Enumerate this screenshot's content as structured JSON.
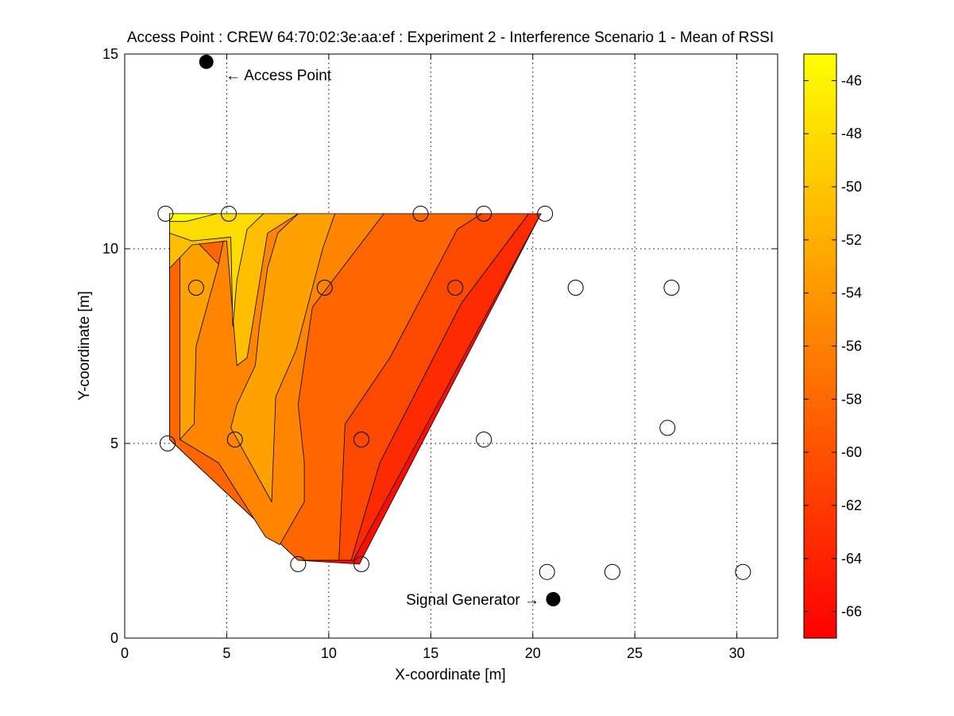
{
  "chart_data": {
    "type": "contour",
    "title": "Access Point : CREW 64:70:02:3e:aa:ef : Experiment 2 - Interference Scenario 1 - Mean of RSSI",
    "xlabel": "X-coordinate [m]",
    "ylabel": "Y-coordinate [m]",
    "xlim": [
      0,
      32
    ],
    "ylim": [
      0,
      15
    ],
    "x_ticks": [
      0,
      5,
      10,
      15,
      20,
      25,
      30
    ],
    "y_ticks": [
      0,
      5,
      10,
      15
    ],
    "grid": true,
    "colorbar": {
      "range": [
        -67,
        -45
      ],
      "ticks": [
        -46,
        -48,
        -50,
        -52,
        -54,
        -56,
        -58,
        -60,
        -62,
        -64,
        -66
      ],
      "colormap": "autumn",
      "low_color": "#ff0000",
      "high_color": "#ffff00"
    },
    "contour_regions": [
      {
        "level": -66.5,
        "color": "#ff0d00",
        "points": [
          [
            2.2,
            5.1
          ],
          [
            2.2,
            10.9
          ],
          [
            20.4,
            10.9
          ],
          [
            11.5,
            1.9
          ],
          [
            8.5,
            2.0
          ]
        ]
      },
      {
        "level": -64.5,
        "color": "#ff2b00",
        "points": [
          [
            2.2,
            5.1
          ],
          [
            2.2,
            10.9
          ],
          [
            20.4,
            10.9
          ],
          [
            11.2,
            2.0
          ],
          [
            8.5,
            2.0
          ]
        ]
      },
      {
        "level": -62.5,
        "color": "#ff4800",
        "points": [
          [
            2.2,
            5.1
          ],
          [
            2.2,
            10.9
          ],
          [
            19.8,
            10.9
          ],
          [
            16.5,
            8.6
          ],
          [
            12.5,
            4.5
          ],
          [
            11.1,
            2.0
          ],
          [
            9.2,
            2.0
          ],
          [
            8.5,
            2.0
          ]
        ]
      },
      {
        "level": -60.5,
        "color": "#ff6600",
        "points": [
          [
            2.2,
            5.1
          ],
          [
            2.2,
            10.9
          ],
          [
            17.5,
            10.9
          ],
          [
            16.3,
            10.5
          ],
          [
            13.0,
            7.2
          ],
          [
            10.8,
            5.5
          ],
          [
            10.5,
            2.0
          ],
          [
            9.2,
            2.0
          ],
          [
            8.5,
            2.0
          ]
        ]
      },
      {
        "level": -58.5,
        "color": "#ff8400",
        "points": [
          [
            2.7,
            5.1
          ],
          [
            2.7,
            10.0
          ],
          [
            3.5,
            10.2
          ],
          [
            3.2,
            9.0
          ],
          [
            3.1,
            8.5
          ],
          [
            3.4,
            7.5
          ],
          [
            3.5,
            8.8
          ],
          [
            4.6,
            9.6
          ],
          [
            5.0,
            10.6
          ],
          [
            5.2,
            10.9
          ],
          [
            12.7,
            10.9
          ],
          [
            9.2,
            8.5
          ],
          [
            8.5,
            6.0
          ],
          [
            8.8,
            4.5
          ],
          [
            8.8,
            3.5
          ],
          [
            7.6,
            2.4
          ],
          [
            6.9,
            2.6
          ],
          [
            4.6,
            4.5
          ],
          [
            2.7,
            5.1
          ]
        ]
      },
      {
        "level": -56.5,
        "color": "#ffa200",
        "points": [
          [
            5.2,
            5.4
          ],
          [
            5.5,
            6.0
          ],
          [
            6.4,
            7.0
          ],
          [
            6.6,
            8.0
          ],
          [
            7.0,
            9.5
          ],
          [
            7.5,
            10.4
          ],
          [
            8.5,
            10.9
          ],
          [
            10.3,
            10.9
          ],
          [
            9.7,
            10.0
          ],
          [
            8.4,
            7.4
          ],
          [
            7.4,
            6.2
          ],
          [
            7.2,
            3.5
          ],
          [
            5.2,
            5.4
          ]
        ]
      },
      {
        "level": -56.5,
        "color": "#ffa200",
        "points": [
          [
            2.7,
            5.1
          ],
          [
            2.7,
            10.0
          ],
          [
            3.5,
            10.2
          ],
          [
            4.6,
            9.6
          ],
          [
            3.5,
            7.5
          ],
          [
            3.4,
            5.5
          ],
          [
            2.7,
            5.1
          ]
        ]
      },
      {
        "level": -54.5,
        "color": "#ffbe00",
        "points": [
          [
            2.2,
            8.4
          ],
          [
            2.2,
            10.9
          ],
          [
            8.5,
            10.9
          ],
          [
            7.0,
            10.4
          ],
          [
            6.0,
            7.2
          ],
          [
            5.5,
            7.0
          ],
          [
            5.0,
            10.2
          ],
          [
            3.3,
            10.1
          ],
          [
            2.2,
            9.5
          ],
          [
            2.2,
            8.4
          ]
        ]
      },
      {
        "level": -52.5,
        "color": "#ffdc00",
        "points": [
          [
            2.2,
            10.4
          ],
          [
            2.2,
            10.9
          ],
          [
            6.8,
            10.9
          ],
          [
            6.0,
            10.5
          ],
          [
            5.5,
            9.2
          ],
          [
            5.3,
            8.0
          ],
          [
            5.2,
            10.3
          ],
          [
            3.3,
            10.2
          ],
          [
            2.2,
            10.4
          ]
        ]
      },
      {
        "level": -49.0,
        "color": "#ffff00",
        "points": [
          [
            2.2,
            10.7
          ],
          [
            2.2,
            10.9
          ],
          [
            4.5,
            10.9
          ],
          [
            3.0,
            10.7
          ],
          [
            2.2,
            10.7
          ]
        ]
      }
    ],
    "measurement_points": [
      [
        2.0,
        10.9
      ],
      [
        5.1,
        10.9
      ],
      [
        14.5,
        10.9
      ],
      [
        17.6,
        10.9
      ],
      [
        20.6,
        10.9
      ],
      [
        3.5,
        9.0
      ],
      [
        9.8,
        9.0
      ],
      [
        16.2,
        9.0
      ],
      [
        22.1,
        9.0
      ],
      [
        26.8,
        9.0
      ],
      [
        2.1,
        5.0
      ],
      [
        5.4,
        5.1
      ],
      [
        11.6,
        5.1
      ],
      [
        17.6,
        5.1
      ],
      [
        26.6,
        5.4
      ],
      [
        8.5,
        1.9
      ],
      [
        11.6,
        1.9
      ],
      [
        20.7,
        1.7
      ],
      [
        23.9,
        1.7
      ],
      [
        30.3,
        1.7
      ]
    ],
    "annotations": [
      {
        "label": "← Access Point",
        "marker": [
          4.0,
          14.8
        ]
      },
      {
        "label": "Signal Generator →",
        "marker": [
          21.0,
          1.0
        ]
      }
    ]
  }
}
